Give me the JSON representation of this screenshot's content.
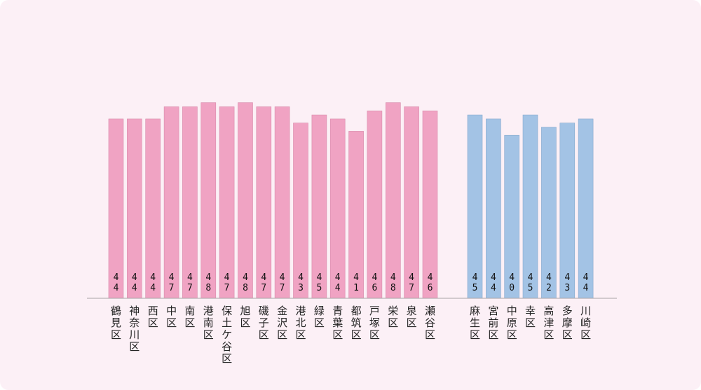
{
  "chart_data": {
    "type": "bar",
    "ylim": [
      0,
      50
    ],
    "grid": false,
    "legend": "none",
    "colors": {
      "yokohama": "#f0a3c3",
      "kawasaki": "#a3c3e5"
    },
    "series": [
      {
        "categories": [
          "鶴見区",
          "神奈川区",
          "西区",
          "中区",
          "南区",
          "港南区",
          "保土ケ谷区",
          "旭区",
          "磯子区",
          "金沢区",
          "港北区",
          "緑区",
          "青葉区",
          "都筑区",
          "戸塚区",
          "栄区",
          "泉区",
          "瀬谷区"
        ],
        "values": [
          44,
          44,
          44,
          47,
          47,
          48,
          47,
          48,
          47,
          47,
          43,
          45,
          44,
          41,
          46,
          48,
          47,
          46
        ],
        "value_labels": [
          "44",
          "44",
          "44",
          "47",
          "47",
          "48",
          "47",
          "48",
          "47",
          "47",
          "43",
          "45",
          "44",
          "41",
          "46",
          "48",
          "47",
          "46"
        ]
      },
      {
        "categories": [
          "麻生区",
          "宮前区",
          "中原区",
          "幸区",
          "高津区",
          "多摩区",
          "川崎区"
        ],
        "values": [
          45,
          44,
          40,
          45,
          42,
          43,
          44
        ],
        "value_labels": [
          "45",
          "44",
          "40",
          "45",
          "42",
          "43",
          "44"
        ]
      }
    ]
  }
}
